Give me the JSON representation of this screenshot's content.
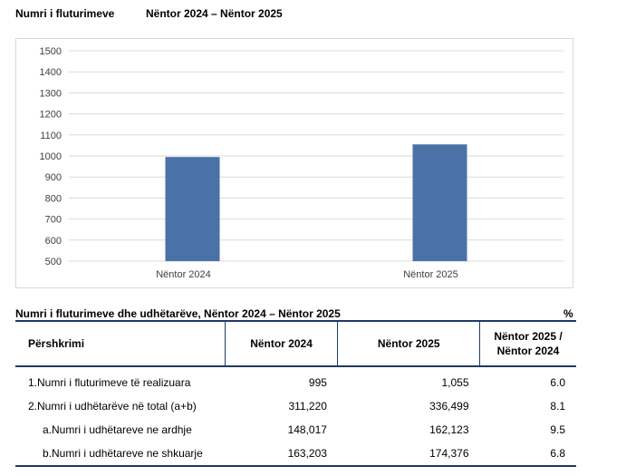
{
  "header": {
    "title": "Numri i fluturimeve",
    "period": "Nëntor 2024 – Nëntor 2025"
  },
  "chart_data": {
    "type": "bar",
    "categories": [
      "Nëntor 2024",
      "Nëntor 2025"
    ],
    "values": [
      995,
      1055
    ],
    "ylim": [
      500,
      1500
    ],
    "yticks": [
      500,
      600,
      700,
      800,
      900,
      1000,
      1100,
      1200,
      1300,
      1400,
      1500
    ],
    "grid": true,
    "bar_color": "#4a72a8"
  },
  "table": {
    "title": "Numri i fluturimeve dhe udhëtarëve, Nëntor 2024 – Nëntor 2025",
    "unit": "%",
    "headers": [
      "Përshkrimi",
      "Nëntor 2024",
      "Nëntor 2025",
      "Nëntor 2025 / Nëntor 2024"
    ],
    "rows": [
      [
        "1.Numri i fluturimeve të realizuara",
        "995",
        "1,055",
        "6.0"
      ],
      [
        "2.Numri i udhëtarëve në total (a+b)",
        "311,220",
        "336,499",
        "8.1"
      ],
      [
        "a.Numri i udhëtareve ne ardhje",
        "148,017",
        "162,123",
        "9.5"
      ],
      [
        "b.Numri i udhëtareve ne shkuarje",
        "163,203",
        "174,376",
        "6.8"
      ]
    ]
  }
}
